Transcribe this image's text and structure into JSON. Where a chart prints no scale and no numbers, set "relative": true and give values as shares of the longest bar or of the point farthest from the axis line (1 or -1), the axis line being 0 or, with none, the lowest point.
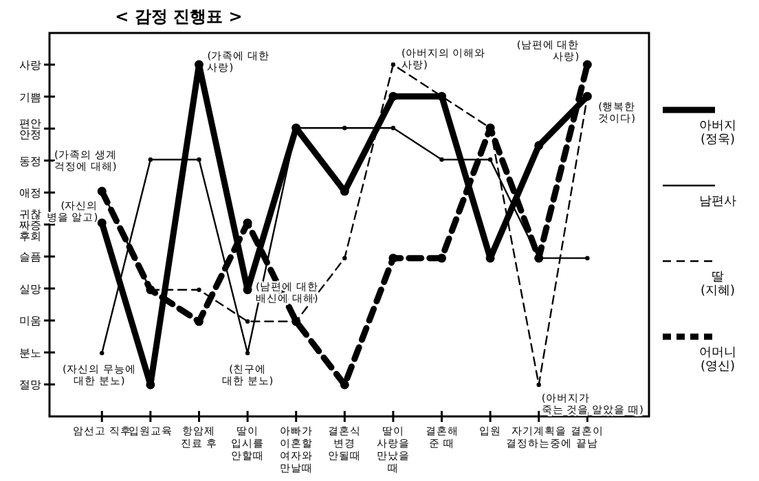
{
  "chart_data": {
    "type": "line",
    "title": "< 감정 진행표 >",
    "categories": [
      "암선고 직후",
      "입원교육",
      "항암제\n진료 후",
      "딸이\n입시를\n안할때",
      "아빠가\n이혼할\n여자와\n만날때",
      "결혼식\n변경\n안될때",
      "딸이\n사랑을\n만났을\n때",
      "결혼해\n준 때",
      "입원",
      "자기계획을\n결정하는중에",
      "결혼이\n끝남"
    ],
    "relative": true,
    "y_categories": [
      "사랑",
      "기쁨",
      "편안\n안정",
      "동정",
      "애정",
      "귀찮\n짜증\n후회",
      "슬픔",
      "실망",
      "미움",
      "분노",
      "절망"
    ],
    "series": [
      {
        "name": "아버지\n(정욱)",
        "color": "#000000",
        "line_style": "solid",
        "marker": "circle",
        "values": [
          0.55,
          0.09,
          1,
          0.36,
          0.82,
          0.64,
          0.91,
          0.91,
          0.45,
          0.77,
          0.91
        ]
      },
      {
        "name": "남편사",
        "color": "#000000",
        "line_style": "solid",
        "marker": "circle",
        "values": [
          0.18,
          0.73,
          0.73,
          0.18,
          0.82,
          0.82,
          0.82,
          0.73,
          0.73,
          0.45,
          0.45
        ]
      },
      {
        "name": "딸\n(지혜)",
        "color": "#000000",
        "line_style": "dashed",
        "marker": "circle",
        "values": [
          0.64,
          0.36,
          0.36,
          0.27,
          0.27,
          0.45,
          1,
          0.91,
          0.82,
          0.09,
          0.91
        ]
      },
      {
        "name": "어머니\n(영신)",
        "color": "#000000",
        "line_style": "dashed",
        "marker": "circle",
        "values": [
          0.64,
          0.36,
          0.27,
          0.55,
          0.27,
          0.09,
          0.45,
          0.45,
          0.82,
          0.45,
          1
        ]
      }
    ],
    "legend": "right",
    "annotations": [
      {
        "text": "(자신의\n병을 알고)",
        "x": "암선고 직후",
        "y": 0.55
      },
      {
        "text": "(자신의 무능에\n대한 분노)",
        "x": "암선고 직후",
        "y": 0.18
      },
      {
        "text": "(가족에 대한\n사랑)",
        "x": "항암제\n진료 후",
        "y": 1
      },
      {
        "text": "(가족의 생계\n걱정에 대해)",
        "x": "암선고 직후",
        "y": 0.64
      },
      {
        "text": "(남편에 대한\n배신에 대해)",
        "x": "딸이\n입시를\n안할때",
        "y": 0.36
      },
      {
        "text": "(친구에\n대한 분노)",
        "x": "딸이\n입시를\n안할때",
        "y": 0.18
      },
      {
        "text": "(아버지의 이해와\n사랑)",
        "x": "딸이\n사랑을\n만났을\n때",
        "y": 1
      },
      {
        "text": "(남편에 대한\n사랑)",
        "x": "결혼이\n끝남",
        "y": 1
      },
      {
        "text": "(행복한\n것이다)",
        "x": "결혼이\n끝남",
        "y": 0.91
      },
      {
        "text": "(아버지가\n죽는 것을 알았을 때)",
        "x": "자기계획을\n결정하는중에",
        "y": 0.09
      }
    ]
  }
}
